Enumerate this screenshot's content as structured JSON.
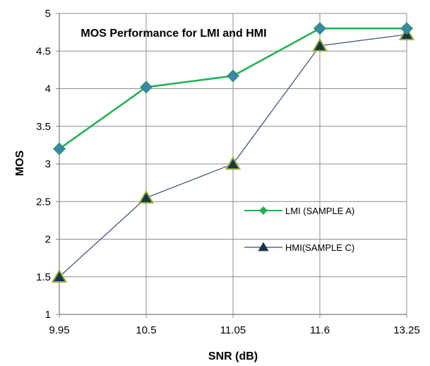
{
  "chart_data": {
    "type": "line",
    "title": "MOS Performance for LMI and HMI",
    "xlabel": "SNR (dB)",
    "ylabel": "MOS",
    "categories": [
      "9.95",
      "10.5",
      "11.05",
      "11.6",
      "13.25"
    ],
    "ylim": [
      1,
      5
    ],
    "yticks": [
      "1",
      "1.5",
      "2",
      "2.5",
      "3",
      "3.5",
      "4",
      "4.5",
      "5"
    ],
    "grid": true,
    "legend_position": "right",
    "series": [
      {
        "name": "LMI (SAMPLE A)",
        "values": [
          3.2,
          4.02,
          4.17,
          4.8,
          4.8
        ],
        "marker": "diamond",
        "color": "#20b050",
        "marker_fill": "#3a86b0",
        "marker_stroke": "#2f9a60"
      },
      {
        "name": "HMI(SAMPLE C)",
        "values": [
          1.5,
          2.55,
          3.0,
          4.57,
          4.72
        ],
        "marker": "triangle",
        "color": "#3b4a6d",
        "marker_fill": "#17364d",
        "marker_stroke": "#9ab03a"
      }
    ]
  }
}
